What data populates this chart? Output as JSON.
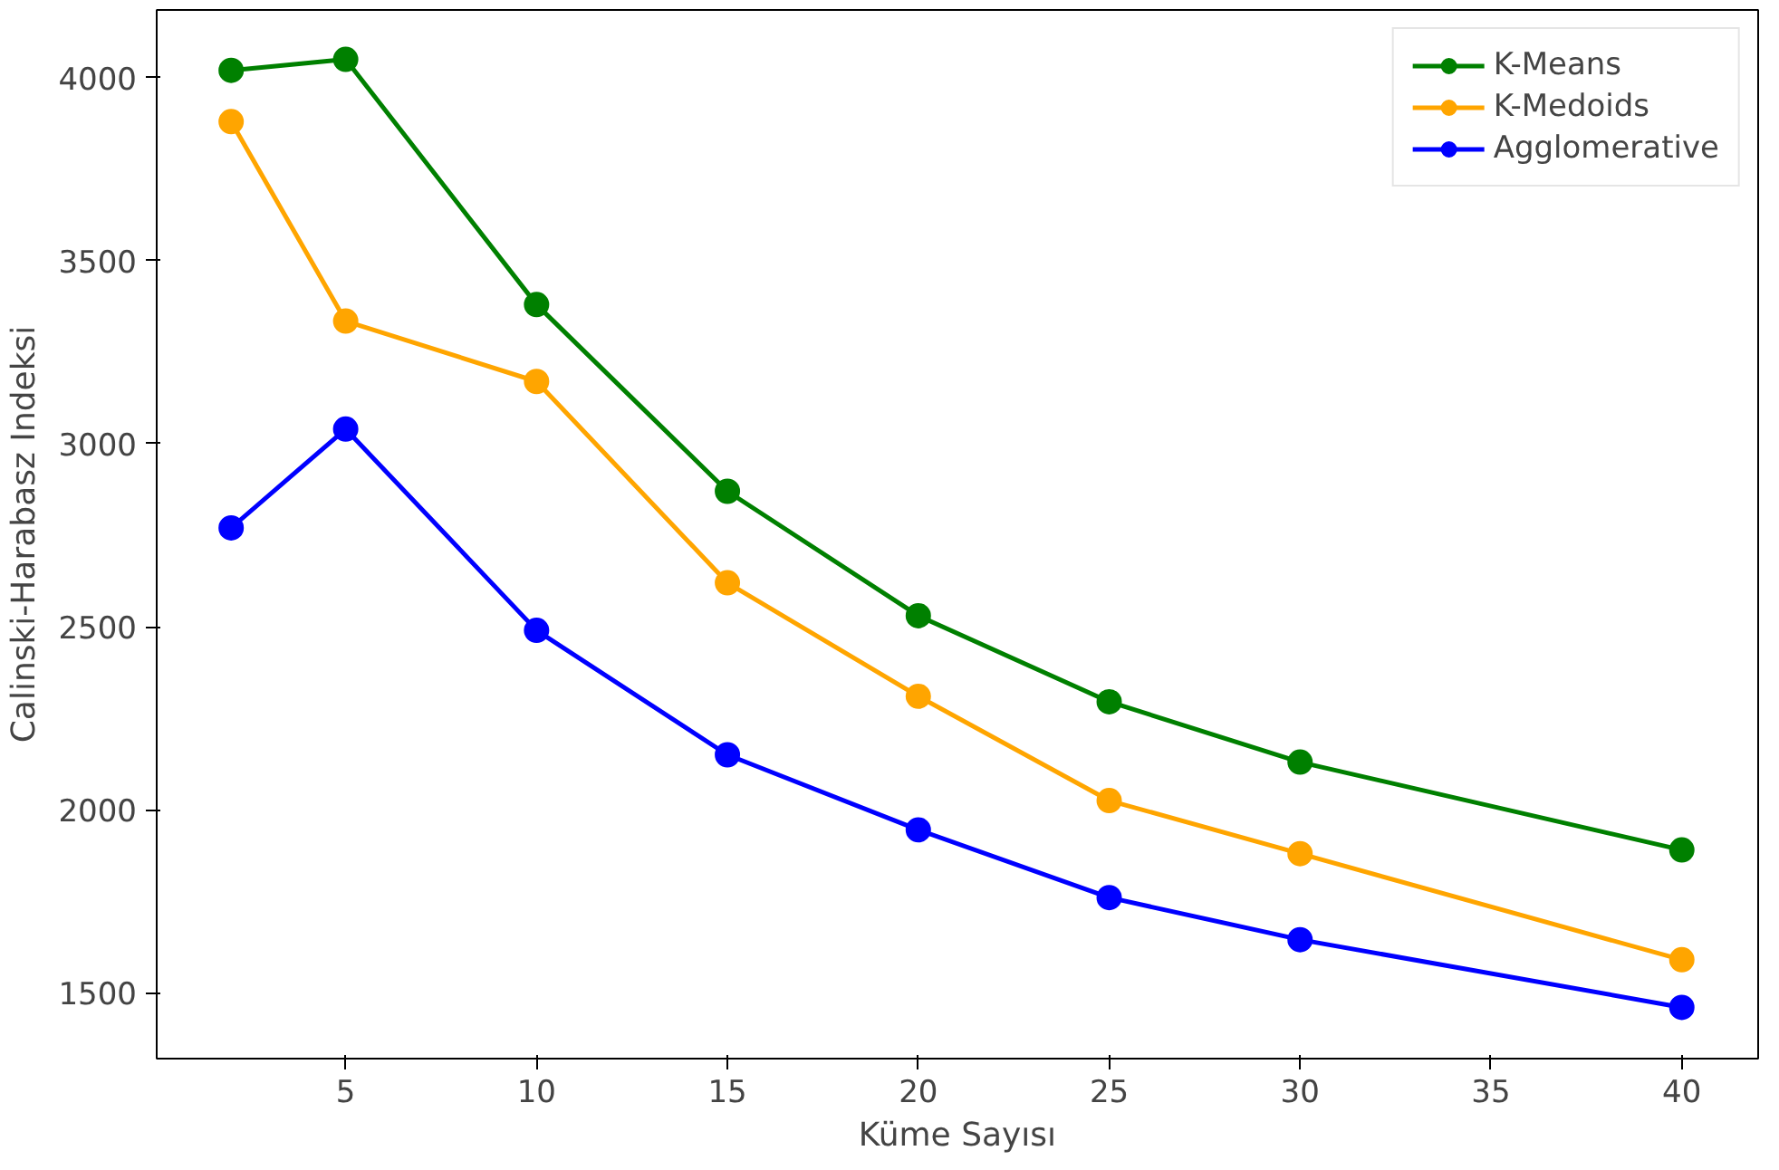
{
  "chart_data": {
    "type": "line",
    "xlabel": "Küme Sayısı",
    "ylabel": "Calinski-Harabasz Indeksi",
    "x": [
      2,
      5,
      10,
      15,
      20,
      25,
      30,
      40
    ],
    "series": [
      {
        "name": "K-Means",
        "color": "#008000",
        "values": [
          4020,
          4050,
          3380,
          2870,
          2530,
          2295,
          2130,
          1890
        ]
      },
      {
        "name": "K-Medoids",
        "color": "#ffa500",
        "values": [
          3880,
          3335,
          3170,
          2620,
          2310,
          2025,
          1880,
          1590
        ]
      },
      {
        "name": "Agglomerative",
        "color": "#0000ff",
        "values": [
          2770,
          3040,
          2490,
          2150,
          1945,
          1760,
          1645,
          1460
        ]
      }
    ],
    "xlim": [
      0.05,
      42
    ],
    "ylim": [
      1320,
      4185
    ],
    "xticks": [
      5,
      10,
      15,
      20,
      25,
      30,
      35,
      40
    ],
    "yticks": [
      1500,
      2000,
      2500,
      3000,
      3500,
      4000
    ],
    "grid": false,
    "legend": "top right",
    "marker": "circle",
    "line_style": "solid"
  }
}
